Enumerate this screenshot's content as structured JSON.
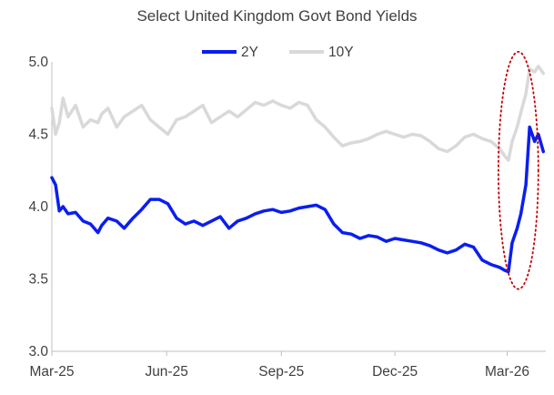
{
  "chart_data": {
    "type": "line",
    "title": "Select United Kingdom Govt Bond Yields",
    "xlabel": "",
    "ylabel": "",
    "ylim": [
      3.0,
      5.0
    ],
    "yticks": [
      "3.0",
      "3.5",
      "4.0",
      "4.5",
      "5.0"
    ],
    "x_range": [
      "2025-03-01",
      "2026-04-01"
    ],
    "xticks": [
      {
        "date": "2025-03-01",
        "label": "Mar-25"
      },
      {
        "date": "2025-06-01",
        "label": "Jun-25"
      },
      {
        "date": "2025-09-01",
        "label": "Sep-25"
      },
      {
        "date": "2025-12-01",
        "label": "Dec-25"
      },
      {
        "date": "2026-03-01",
        "label": "Mar-26"
      }
    ],
    "grid": false,
    "legend_position": "top-center",
    "series": [
      {
        "name": "2Y",
        "color": "#0a1ef0",
        "width": 3.5,
        "x": [
          "2025-03-01",
          "2025-03-04",
          "2025-03-07",
          "2025-03-10",
          "2025-03-14",
          "2025-03-20",
          "2025-03-26",
          "2025-04-01",
          "2025-04-07",
          "2025-04-10",
          "2025-04-15",
          "2025-04-22",
          "2025-04-28",
          "2025-05-05",
          "2025-05-12",
          "2025-05-19",
          "2025-05-26",
          "2025-06-02",
          "2025-06-09",
          "2025-06-16",
          "2025-06-23",
          "2025-06-30",
          "2025-07-07",
          "2025-07-14",
          "2025-07-21",
          "2025-07-28",
          "2025-08-04",
          "2025-08-11",
          "2025-08-18",
          "2025-08-25",
          "2025-09-01",
          "2025-09-08",
          "2025-09-15",
          "2025-09-22",
          "2025-09-29",
          "2025-10-06",
          "2025-10-13",
          "2025-10-20",
          "2025-10-27",
          "2025-11-03",
          "2025-11-10",
          "2025-11-17",
          "2025-11-24",
          "2025-12-01",
          "2025-12-08",
          "2025-12-15",
          "2025-12-22",
          "2025-12-29",
          "2026-01-05",
          "2026-01-12",
          "2026-01-19",
          "2026-01-26",
          "2026-02-02",
          "2026-02-09",
          "2026-02-16",
          "2026-02-23",
          "2026-02-27",
          "2026-03-02",
          "2026-03-05",
          "2026-03-09",
          "2026-03-12",
          "2026-03-16",
          "2026-03-19",
          "2026-03-23",
          "2026-03-26",
          "2026-03-30"
        ],
        "values": [
          4.2,
          4.15,
          3.97,
          4.0,
          3.95,
          3.96,
          3.9,
          3.88,
          3.82,
          3.87,
          3.92,
          3.9,
          3.85,
          3.92,
          3.98,
          4.05,
          4.05,
          4.02,
          3.92,
          3.88,
          3.9,
          3.87,
          3.9,
          3.93,
          3.85,
          3.9,
          3.92,
          3.95,
          3.97,
          3.98,
          3.96,
          3.97,
          3.99,
          4.0,
          4.01,
          3.98,
          3.88,
          3.82,
          3.81,
          3.78,
          3.8,
          3.79,
          3.76,
          3.78,
          3.77,
          3.76,
          3.75,
          3.73,
          3.7,
          3.68,
          3.7,
          3.74,
          3.72,
          3.63,
          3.6,
          3.58,
          3.56,
          3.55,
          3.75,
          3.85,
          3.95,
          4.15,
          4.55,
          4.45,
          4.5,
          4.38
        ]
      },
      {
        "name": "10Y",
        "color": "#d9d9d9",
        "width": 3.5,
        "x": [
          "2025-03-01",
          "2025-03-04",
          "2025-03-07",
          "2025-03-10",
          "2025-03-14",
          "2025-03-20",
          "2025-03-26",
          "2025-04-01",
          "2025-04-07",
          "2025-04-10",
          "2025-04-15",
          "2025-04-22",
          "2025-04-28",
          "2025-05-05",
          "2025-05-12",
          "2025-05-19",
          "2025-05-26",
          "2025-06-02",
          "2025-06-09",
          "2025-06-16",
          "2025-06-23",
          "2025-06-30",
          "2025-07-07",
          "2025-07-14",
          "2025-07-21",
          "2025-07-28",
          "2025-08-04",
          "2025-08-11",
          "2025-08-18",
          "2025-08-25",
          "2025-09-01",
          "2025-09-08",
          "2025-09-15",
          "2025-09-22",
          "2025-09-29",
          "2025-10-06",
          "2025-10-13",
          "2025-10-20",
          "2025-10-27",
          "2025-11-03",
          "2025-11-10",
          "2025-11-17",
          "2025-11-24",
          "2025-12-01",
          "2025-12-08",
          "2025-12-15",
          "2025-12-22",
          "2025-12-29",
          "2026-01-05",
          "2026-01-12",
          "2026-01-19",
          "2026-01-26",
          "2026-02-02",
          "2026-02-09",
          "2026-02-16",
          "2026-02-23",
          "2026-02-27",
          "2026-03-02",
          "2026-03-05",
          "2026-03-09",
          "2026-03-12",
          "2026-03-16",
          "2026-03-19",
          "2026-03-23",
          "2026-03-26",
          "2026-03-30"
        ],
        "values": [
          4.68,
          4.5,
          4.58,
          4.75,
          4.62,
          4.7,
          4.55,
          4.6,
          4.58,
          4.64,
          4.68,
          4.55,
          4.62,
          4.66,
          4.7,
          4.6,
          4.55,
          4.5,
          4.6,
          4.62,
          4.66,
          4.7,
          4.58,
          4.62,
          4.66,
          4.62,
          4.67,
          4.72,
          4.7,
          4.73,
          4.7,
          4.68,
          4.72,
          4.7,
          4.6,
          4.55,
          4.48,
          4.42,
          4.44,
          4.45,
          4.47,
          4.5,
          4.52,
          4.5,
          4.48,
          4.5,
          4.49,
          4.45,
          4.4,
          4.38,
          4.42,
          4.48,
          4.5,
          4.47,
          4.45,
          4.4,
          4.35,
          4.32,
          4.45,
          4.55,
          4.65,
          4.78,
          4.95,
          4.93,
          4.97,
          4.92
        ]
      }
    ],
    "annotation": {
      "shape": "ellipse",
      "style": "dotted",
      "color": "#c00000",
      "center_date": "2026-03-10",
      "center_value": 4.25,
      "x_radius_days": 16,
      "y_radius": 0.82
    }
  }
}
